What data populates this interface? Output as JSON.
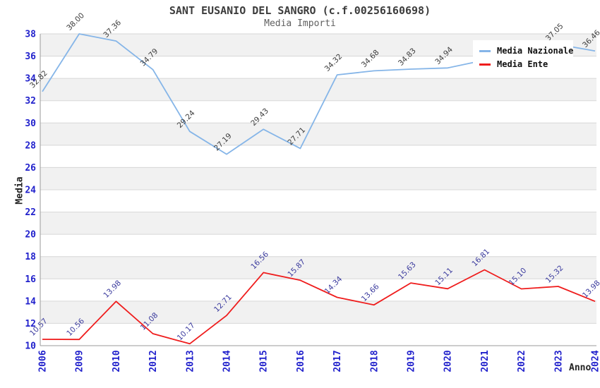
{
  "header": {
    "title": "SANT EUSANIO DEL SANGRO (c.f.00256160698)",
    "subtitle": "Media Importi"
  },
  "chart_data": {
    "type": "line",
    "title": "SANT EUSANIO DEL SANGRO (c.f.00256160698)",
    "subtitle": "Media Importi",
    "xlabel": "Anno",
    "ylabel": "Media",
    "categories": [
      "2006",
      "2009",
      "2010",
      "2012",
      "2013",
      "2014",
      "2015",
      "2016",
      "2017",
      "2018",
      "2019",
      "2020",
      "2021",
      "2022",
      "2023",
      "2024"
    ],
    "series": [
      {
        "name": "Media Nazionale",
        "color": "#85b5e8",
        "label_color": "#3c3c3c",
        "values": [
          32.82,
          38.0,
          37.36,
          34.79,
          29.24,
          27.19,
          29.43,
          27.71,
          34.32,
          34.68,
          34.83,
          34.94,
          null,
          null,
          37.05,
          36.46
        ]
      },
      {
        "name": "Media Ente",
        "color": "#ef1c1c",
        "label_color": "#3b3b9e",
        "values": [
          10.57,
          10.56,
          13.98,
          11.08,
          10.17,
          12.71,
          16.56,
          15.87,
          14.34,
          13.66,
          15.63,
          15.11,
          16.81,
          15.1,
          15.32,
          13.98
        ]
      }
    ],
    "ylim": [
      10,
      38
    ],
    "ytick_step": 2,
    "grid": true,
    "band_fill": "alternating",
    "legend_position": "top-right",
    "value_label_decimals": 2
  },
  "styles": {
    "band": "#f1f1f1",
    "grid": "#d7d7d7",
    "axis": "#9a9a9a",
    "tick_label": "#2121cc",
    "axis_title": "#222222",
    "title_color": "#3d3d3d",
    "subtitle_color": "#5f5f5f",
    "legend_bg": "#ffffff"
  }
}
